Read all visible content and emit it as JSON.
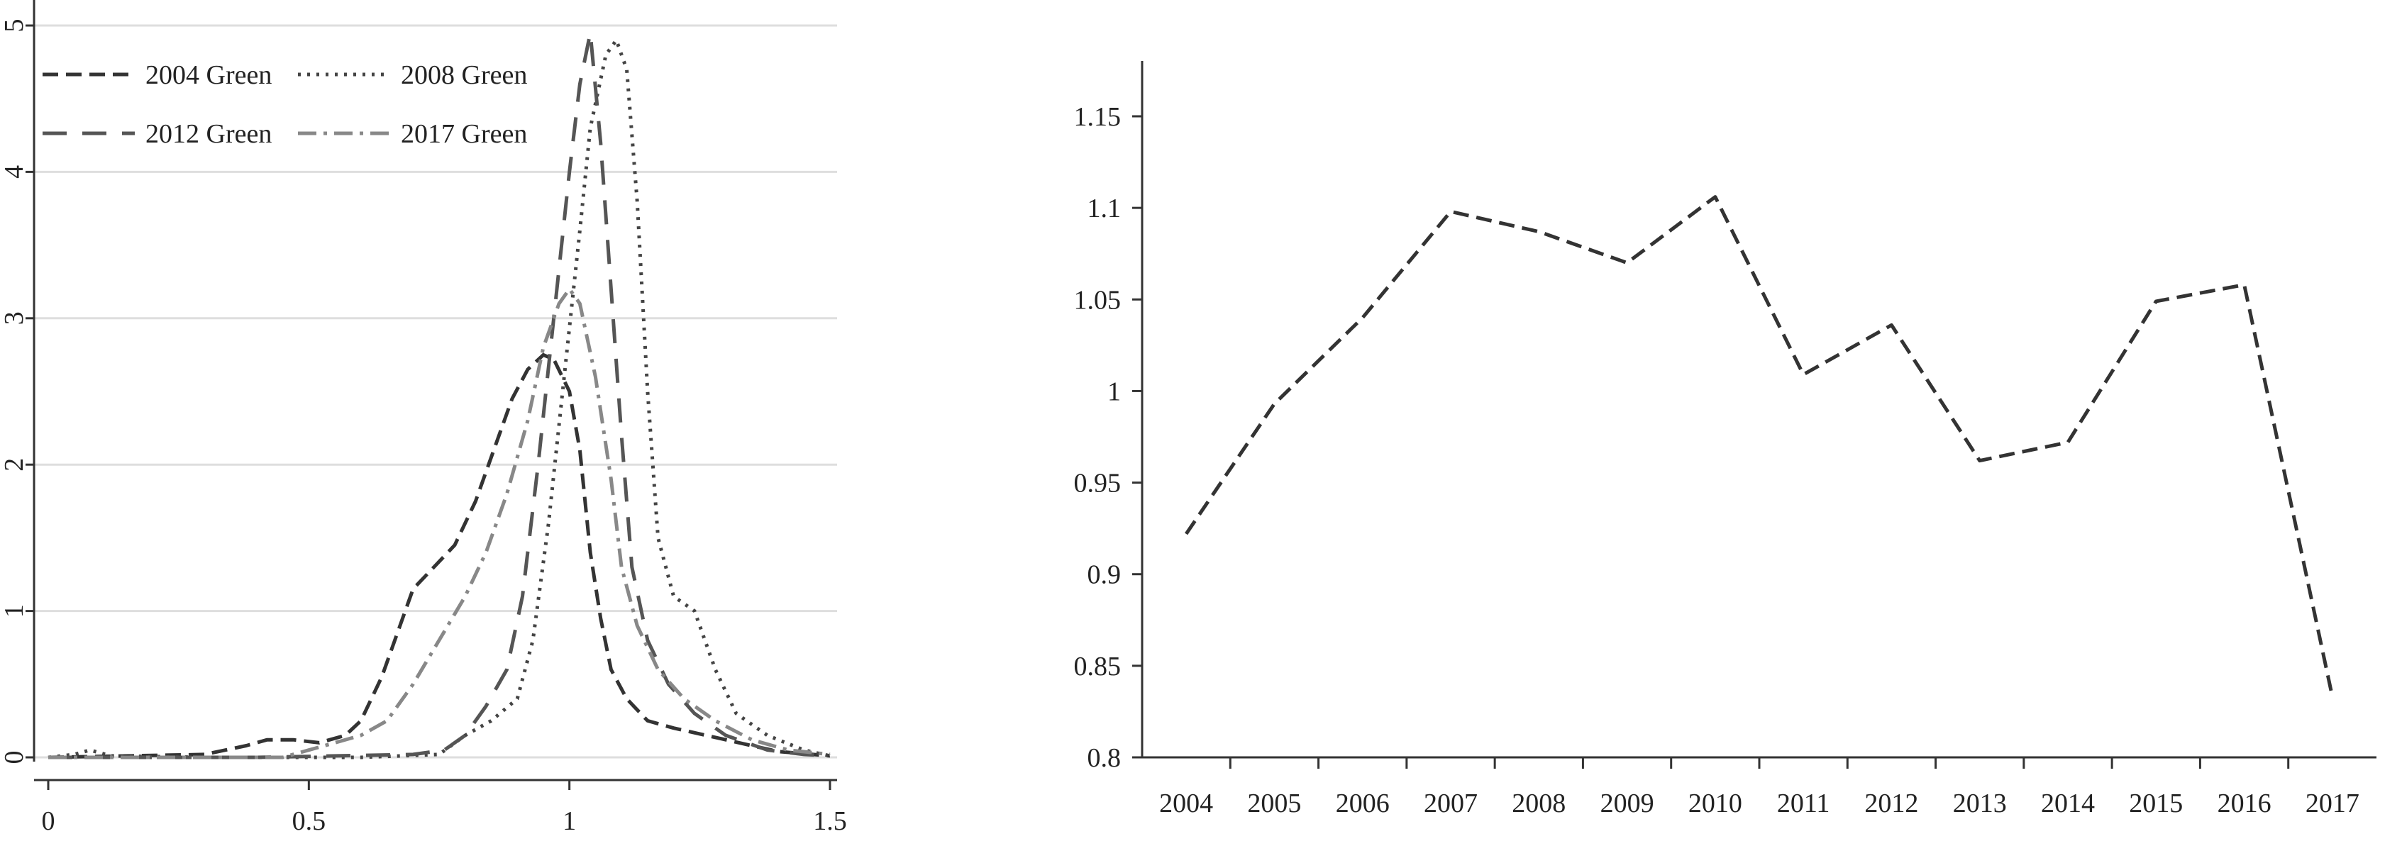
{
  "chart_data": [
    {
      "type": "line",
      "title": "",
      "xlabel": "",
      "ylabel": "",
      "xlim": [
        0,
        1.5
      ],
      "ylim": [
        0,
        5
      ],
      "x_ticks": [
        "0",
        "0.5",
        "1",
        "1.5"
      ],
      "x_tick_values": [
        0,
        0.5,
        1,
        1.5
      ],
      "y_ticks": [
        "0",
        "1",
        "2",
        "3",
        "4",
        "5"
      ],
      "y_tick_values": [
        0,
        1,
        2,
        3,
        4,
        5
      ],
      "grid": "horizontal",
      "legend_position": "top-left",
      "series": [
        {
          "name": "2004 Green",
          "color": "#333333",
          "dash": "dash",
          "points": [
            [
              0,
              0
            ],
            [
              0.3,
              0.02
            ],
            [
              0.38,
              0.08
            ],
            [
              0.42,
              0.12
            ],
            [
              0.47,
              0.12
            ],
            [
              0.52,
              0.1
            ],
            [
              0.57,
              0.15
            ],
            [
              0.6,
              0.25
            ],
            [
              0.64,
              0.55
            ],
            [
              0.67,
              0.85
            ],
            [
              0.7,
              1.15
            ],
            [
              0.74,
              1.3
            ],
            [
              0.78,
              1.45
            ],
            [
              0.82,
              1.75
            ],
            [
              0.86,
              2.15
            ],
            [
              0.89,
              2.45
            ],
            [
              0.92,
              2.65
            ],
            [
              0.95,
              2.75
            ],
            [
              0.97,
              2.72
            ],
            [
              1.0,
              2.5
            ],
            [
              1.02,
              2.1
            ],
            [
              1.04,
              1.4
            ],
            [
              1.06,
              0.95
            ],
            [
              1.08,
              0.6
            ],
            [
              1.11,
              0.4
            ],
            [
              1.15,
              0.25
            ],
            [
              1.2,
              0.2
            ],
            [
              1.3,
              0.12
            ],
            [
              1.4,
              0.04
            ],
            [
              1.5,
              0.01
            ]
          ]
        },
        {
          "name": "2008 Green",
          "color": "#444444",
          "dash": "dot",
          "points": [
            [
              0,
              0
            ],
            [
              0.05,
              0.02
            ],
            [
              0.08,
              0.05
            ],
            [
              0.12,
              0.01
            ],
            [
              0.3,
              0
            ],
            [
              0.6,
              0.0
            ],
            [
              0.75,
              0.02
            ],
            [
              0.8,
              0.15
            ],
            [
              0.85,
              0.25
            ],
            [
              0.9,
              0.4
            ],
            [
              0.93,
              0.8
            ],
            [
              0.96,
              1.6
            ],
            [
              0.99,
              2.6
            ],
            [
              1.02,
              3.6
            ],
            [
              1.04,
              4.3
            ],
            [
              1.07,
              4.8
            ],
            [
              1.09,
              4.9
            ],
            [
              1.11,
              4.7
            ],
            [
              1.13,
              3.8
            ],
            [
              1.15,
              2.5
            ],
            [
              1.17,
              1.5
            ],
            [
              1.2,
              1.1
            ],
            [
              1.24,
              1.0
            ],
            [
              1.28,
              0.6
            ],
            [
              1.32,
              0.3
            ],
            [
              1.38,
              0.15
            ],
            [
              1.45,
              0.05
            ],
            [
              1.5,
              0.01
            ]
          ]
        },
        {
          "name": "2012 Green",
          "color": "#555555",
          "dash": "longdash",
          "points": [
            [
              0,
              0
            ],
            [
              0.4,
              0.0
            ],
            [
              0.7,
              0.02
            ],
            [
              0.76,
              0.05
            ],
            [
              0.8,
              0.15
            ],
            [
              0.84,
              0.35
            ],
            [
              0.88,
              0.6
            ],
            [
              0.91,
              1.1
            ],
            [
              0.94,
              2.0
            ],
            [
              0.97,
              3.0
            ],
            [
              1.0,
              4.0
            ],
            [
              1.02,
              4.6
            ],
            [
              1.04,
              4.95
            ],
            [
              1.06,
              4.2
            ],
            [
              1.08,
              3.2
            ],
            [
              1.1,
              2.2
            ],
            [
              1.12,
              1.3
            ],
            [
              1.15,
              0.8
            ],
            [
              1.19,
              0.5
            ],
            [
              1.24,
              0.3
            ],
            [
              1.3,
              0.15
            ],
            [
              1.38,
              0.05
            ],
            [
              1.45,
              0.02
            ],
            [
              1.5,
              0.01
            ]
          ]
        },
        {
          "name": "2017 Green",
          "color": "#888888",
          "dash": "dashdot",
          "points": [
            [
              0,
              0
            ],
            [
              0.45,
              0.0
            ],
            [
              0.5,
              0.05
            ],
            [
              0.55,
              0.1
            ],
            [
              0.6,
              0.15
            ],
            [
              0.65,
              0.25
            ],
            [
              0.7,
              0.5
            ],
            [
              0.75,
              0.8
            ],
            [
              0.8,
              1.1
            ],
            [
              0.84,
              1.4
            ],
            [
              0.88,
              1.8
            ],
            [
              0.92,
              2.3
            ],
            [
              0.95,
              2.8
            ],
            [
              0.98,
              3.1
            ],
            [
              1.0,
              3.2
            ],
            [
              1.02,
              3.1
            ],
            [
              1.05,
              2.6
            ],
            [
              1.08,
              1.9
            ],
            [
              1.1,
              1.3
            ],
            [
              1.13,
              0.9
            ],
            [
              1.17,
              0.6
            ],
            [
              1.22,
              0.4
            ],
            [
              1.28,
              0.25
            ],
            [
              1.35,
              0.12
            ],
            [
              1.42,
              0.05
            ],
            [
              1.5,
              0.02
            ]
          ]
        }
      ]
    },
    {
      "type": "line",
      "title": "",
      "xlabel": "",
      "ylabel": "",
      "ylim": [
        0.8,
        1.15
      ],
      "y_ticks": [
        "0.8",
        "0.85",
        "0.9",
        "0.95",
        "1",
        "1.05",
        "1.1",
        "1.15"
      ],
      "y_tick_values": [
        0.8,
        0.85,
        0.9,
        0.95,
        1.0,
        1.05,
        1.1,
        1.15
      ],
      "grid": "none",
      "categories": [
        "2004",
        "2005",
        "2006",
        "2007",
        "2008",
        "2009",
        "2010",
        "2011",
        "2012",
        "2013",
        "2014",
        "2015",
        "2016",
        "2017"
      ],
      "series": [
        {
          "color": "#333333",
          "dash": "dash",
          "values": [
            0.922,
            0.993,
            1.04,
            1.098,
            1.087,
            1.07,
            1.106,
            1.009,
            1.036,
            0.962,
            0.972,
            1.049,
            1.058,
            0.833
          ]
        }
      ]
    }
  ]
}
